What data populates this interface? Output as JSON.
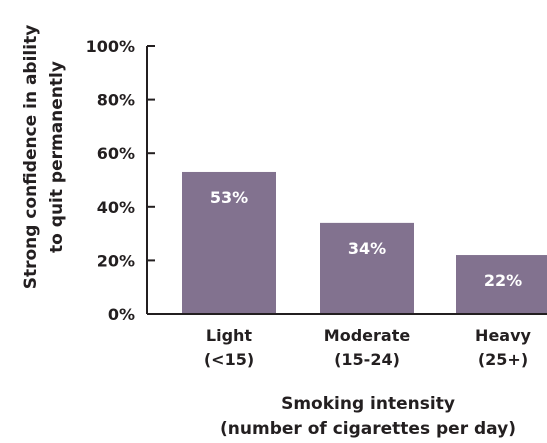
{
  "chart_data": {
    "type": "bar",
    "categories": [
      [
        "Light",
        "(<15)"
      ],
      [
        "Moderate",
        "(15-24)"
      ],
      [
        "Heavy",
        "(25+)"
      ]
    ],
    "values": [
      53,
      34,
      22
    ],
    "data_labels": [
      "53%",
      "34%",
      "22%"
    ],
    "ylabel": [
      "Strong confidence in ability",
      "to quit permanently"
    ],
    "xlabel": [
      "Smoking intensity",
      "(number of cigarettes per day)"
    ],
    "ylim": [
      0,
      100
    ],
    "yticks": [
      "0%",
      "20%",
      "40%",
      "60%",
      "80%",
      "100%"
    ],
    "grid": false,
    "legend": "none",
    "colors": {
      "bar": "#82728f",
      "axis": "#231f20",
      "text": "#231f20",
      "data_label": "#ffffff"
    }
  }
}
